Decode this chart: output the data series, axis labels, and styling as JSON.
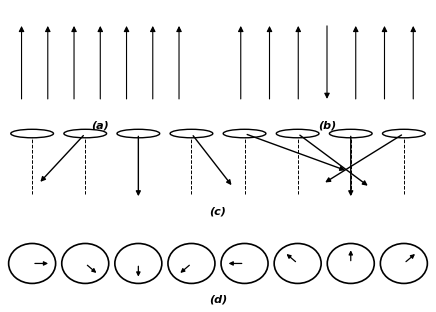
{
  "fig_width": 4.36,
  "fig_height": 3.12,
  "dpi": 100,
  "background": "#ffffff",
  "label_a": "(a)",
  "label_b": "(b)",
  "label_c": "(c)",
  "label_d": "(d)",
  "n_spins_a": 7,
  "n_spins_b": 7,
  "b_flip_index": 3,
  "n_cones": 8,
  "cone_phi_deg": [
    210,
    240,
    270,
    300,
    330,
    30,
    90,
    150
  ],
  "cone_tilt_deg": [
    55,
    40,
    5,
    35,
    55,
    35,
    5,
    40
  ],
  "n_circles": 8,
  "circle_angles_deg": [
    0,
    -45,
    -90,
    -135,
    180,
    135,
    90,
    45
  ]
}
